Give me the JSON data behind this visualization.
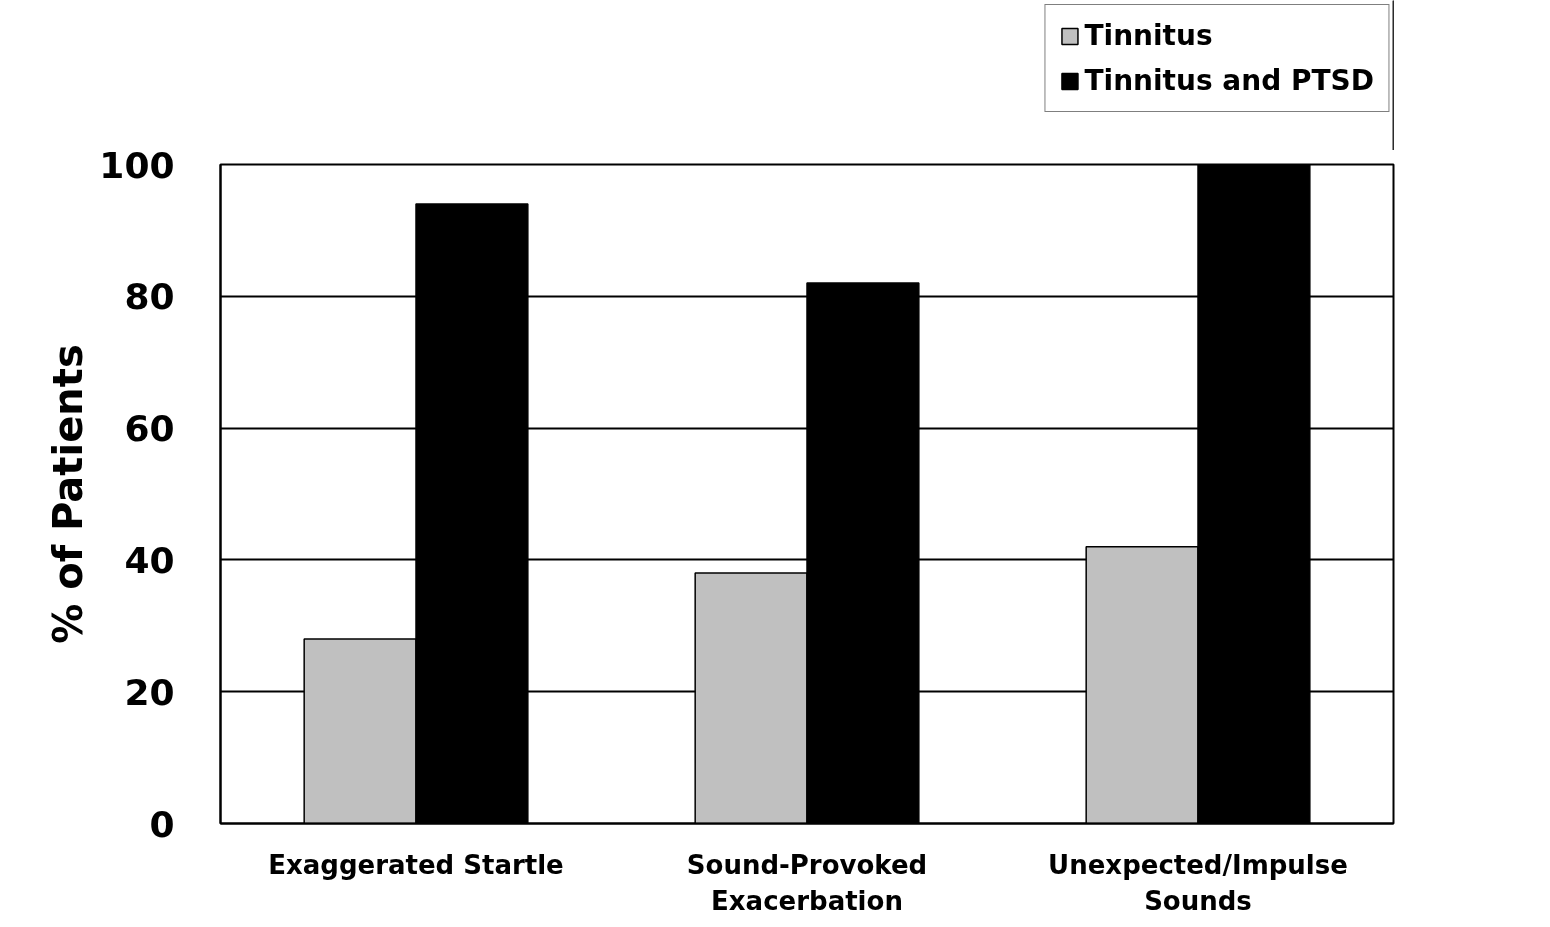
{
  "chart_data": {
    "type": "bar",
    "ylabel": "% of Patients",
    "categories": [
      "Exaggerated Startle",
      "Sound-Provoked Exacerbation",
      "Unexpected/Impulse Sounds"
    ],
    "series": [
      {
        "name": "Tinnitus",
        "color": "#c0c0c0",
        "values": [
          28,
          38,
          42
        ]
      },
      {
        "name": "Tinnitus and PTSD",
        "color": "#000000",
        "values": [
          94,
          82,
          100
        ]
      }
    ],
    "ylim": [
      0,
      100
    ],
    "yticks": [
      0,
      20,
      40,
      60,
      80,
      100
    ],
    "grid": "y",
    "legend": "top right"
  }
}
